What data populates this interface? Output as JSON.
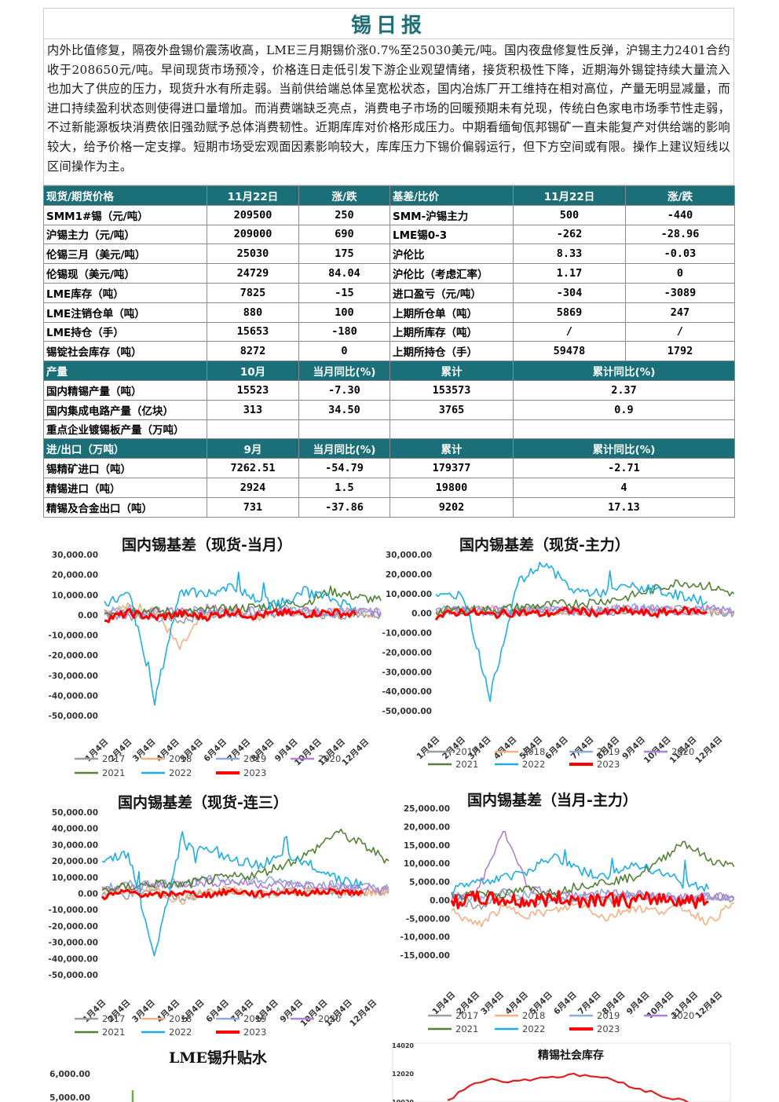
{
  "report_title": "锡日报",
  "summary": "内外比值修复，隔夜外盘锡价震荡收高，LME三月期锡价涨0.7%至25030美元/吨。国内夜盘修复性反弹，沪锡主力2401合约收于208650元/吨。早间现货市场预冷，价格连日走低引发下游企业观望情绪，接货积极性下降，近期海外锡锭持续大量流入也加大了供应的压力，现货升水有所走弱。当前供给端总体呈宽松状态，国内冶炼厂开工维持在相对高位，产量无明显减量，而进口持续盈利状态则使得进口量增加。而消费端缺乏亮点，消费电子市场的回暖预期未有兑现，传统白色家电市场季节性走弱，不过新能源板块消费依旧强劲赋予总体消费韧性。近期库库对价格形成压力。中期看缅甸佤邦锡矿一直未能复产对供给端的影响较大，给予价格一定支撑。短期市场受宏观面因素影响较大，库库压力下锡价偏弱运行，但下方空间或有限。操作上建议短线以区间操作为主。",
  "table": {
    "header1": [
      "现货/期货价格",
      "11月22日",
      "涨/跌",
      "基差/比价",
      "11月22日",
      "涨/跌"
    ],
    "rows1": [
      [
        "SMM1#锡（元/吨）",
        "209500",
        "250",
        "SMM-沪锡主力",
        "500",
        "-440"
      ],
      [
        "沪锡主力（元/吨）",
        "209000",
        "690",
        "LME锡0-3",
        "-262",
        "-28.96"
      ],
      [
        "伦锡三月（美元/吨）",
        "25030",
        "175",
        "沪伦比",
        "8.33",
        "-0.03"
      ],
      [
        "伦锡现（美元/吨）",
        "24729",
        "84.04",
        "沪伦比（考虑汇率）",
        "1.17",
        "0"
      ],
      [
        "LME库存（吨）",
        "7825",
        "-15",
        "进口盈亏（元/吨）",
        "-304",
        "-3089"
      ],
      [
        "LME注销仓单（吨）",
        "880",
        "100",
        "上期所仓单（吨）",
        "5869",
        "247"
      ],
      [
        "LME持仓（手）",
        "15653",
        "-180",
        "上期所库存（吨）",
        "/",
        "/"
      ],
      [
        "锡锭社会库存（吨）",
        "8272",
        "0",
        "上期所持仓（手）",
        "59478",
        "1792"
      ]
    ],
    "header2": [
      "产量",
      "10月",
      "当月同比(%)",
      "累计",
      "累计同比(%)"
    ],
    "rows2": [
      [
        "国内精锡产量（吨）",
        "15523",
        "-7.30",
        "153573",
        "2.37"
      ],
      [
        "国内集成电路产量（亿块）",
        "313",
        "34.50",
        "3765",
        "0.9"
      ],
      [
        "重点企业镀锡板产量（万吨）",
        "",
        "",
        "",
        ""
      ]
    ],
    "header3": [
      "进/出口（万吨）",
      "9月",
      "当月同比(%)",
      "累计",
      "累计同比(%)"
    ],
    "rows3": [
      [
        "锡精矿进口（吨）",
        "7262.51",
        "-54.79",
        "179377",
        "-2.71"
      ],
      [
        "精锡进口（吨）",
        "2924",
        "1.5",
        "19800",
        "4"
      ],
      [
        "精锡及合金出口（吨）",
        "731",
        "-37.86",
        "9202",
        "17.13"
      ]
    ]
  },
  "colors": {
    "header_bg": "#1b6f78",
    "s2017": "#9e9e9e",
    "s2018": "#f4b183",
    "s2019": "#8faadc",
    "s2020": "#b07fd8",
    "s2021": "#548235",
    "s2022": "#1eaee6",
    "s2023": "#ff0000"
  },
  "months": [
    "1月4日",
    "2月4日",
    "3月4日",
    "4月4日",
    "5月4日",
    "6月4日",
    "7月4日",
    "8月4日",
    "9月4日",
    "10月4日",
    "11月4日",
    "12月4日"
  ],
  "legend": [
    "2017",
    "2018",
    "2019",
    "2020",
    "2021",
    "2022",
    "2023"
  ],
  "chart_data": [
    {
      "type": "line",
      "title": "国内锡基差（现货-当月）",
      "ylim": [
        -50000,
        30000
      ],
      "yticks": [
        "30,000.00",
        "20,000.00",
        "10,000.00",
        "0.00",
        "-10,000.00",
        "-20,000.00",
        "-30,000.00",
        "-40,000.00",
        "-50,000.00"
      ],
      "x": [
        "1月4日",
        "2月4日",
        "3月4日",
        "4月4日",
        "5月4日",
        "6月4日",
        "7月4日",
        "8月4日",
        "9月4日",
        "10月4日",
        "11月4日",
        "12月4日"
      ],
      "legend_position": "bottom",
      "series": [
        {
          "name": "2017",
          "values": [
            500,
            -1000,
            1500,
            -3000,
            0,
            1000,
            -500,
            1500,
            2000,
            -500,
            1000,
            500
          ]
        },
        {
          "name": "2018",
          "values": [
            2000,
            4000,
            3000,
            -17000,
            1000,
            2000,
            -1000,
            1500,
            1000,
            2000,
            500,
            1000
          ]
        },
        {
          "name": "2019",
          "values": [
            1500,
            2500,
            -2000,
            1000,
            2500,
            1000,
            2000,
            3000,
            2500,
            1000,
            2000,
            1500
          ]
        },
        {
          "name": "2020",
          "values": [
            1000,
            500,
            1500,
            2000,
            3000,
            2500,
            1500,
            2000,
            1500,
            1000,
            2000,
            1000
          ]
        },
        {
          "name": "2021",
          "values": [
            1000,
            3000,
            2000,
            1000,
            2000,
            3000,
            4000,
            5000,
            6000,
            12000,
            9000,
            7000
          ]
        },
        {
          "name": "2022",
          "values": [
            6000,
            10000,
            -43000,
            12000,
            10000,
            15000,
            8000,
            6000,
            12000,
            8000,
            4000,
            null
          ]
        },
        {
          "name": "2023",
          "values": [
            -2000,
            1000,
            -1500,
            500,
            -1000,
            1500,
            -500,
            1000,
            500,
            1500,
            0,
            null
          ]
        }
      ]
    },
    {
      "type": "line",
      "title": "国内锡基差（现货-主力）",
      "ylim": [
        -50000,
        30000
      ],
      "yticks": [
        "30,000.00",
        "20,000.00",
        "10,000.00",
        "0.00",
        "-10,000.00",
        "-20,000.00",
        "-30,000.00",
        "-40,000.00",
        "-50,000.00"
      ],
      "x": [
        "1月4日",
        "2月4日",
        "3月4日",
        "4月4日",
        "5月4日",
        "6月4日",
        "7月4日",
        "8月4日",
        "9月4日",
        "10月4日",
        "11月4日",
        "12月4日"
      ],
      "legend_position": "bottom",
      "series": [
        {
          "name": "2017",
          "values": [
            1000,
            2000,
            1500,
            1000,
            500,
            2000,
            1500,
            1000,
            2000,
            1500,
            1000,
            500
          ]
        },
        {
          "name": "2018",
          "values": [
            500,
            1500,
            2000,
            1000,
            1500,
            500,
            1000,
            2000,
            1500,
            1000,
            500,
            1000
          ]
        },
        {
          "name": "2019",
          "values": [
            1500,
            1000,
            500,
            2000,
            2500,
            1000,
            1500,
            3000,
            2000,
            1000,
            1500,
            1000
          ]
        },
        {
          "name": "2020",
          "values": [
            1000,
            2000,
            1500,
            1000,
            2000,
            1500,
            1000,
            2000,
            1500,
            1000,
            2000,
            1000
          ]
        },
        {
          "name": "2021",
          "values": [
            1000,
            2000,
            1500,
            3000,
            4000,
            5000,
            6000,
            8000,
            12000,
            16000,
            14000,
            10000
          ]
        },
        {
          "name": "2022",
          "values": [
            8000,
            10000,
            -43000,
            15000,
            26000,
            12000,
            10000,
            14000,
            12000,
            9000,
            6000,
            null
          ]
        },
        {
          "name": "2023",
          "values": [
            -2000,
            1000,
            -1000,
            500,
            -500,
            1500,
            0,
            1000,
            -500,
            1500,
            500,
            null
          ]
        }
      ]
    },
    {
      "type": "line",
      "title": "国内锡基差（现货-连三）",
      "ylim": [
        -50000,
        50000
      ],
      "yticks": [
        "50,000.00",
        "40,000.00",
        "30,000.00",
        "20,000.00",
        "10,000.00",
        "0.00",
        "-10,000.00",
        "-20,000.00",
        "-30,000.00",
        "-40,000.00",
        "-50,000.00"
      ],
      "x": [
        "1月4日",
        "2月4日",
        "3月4日",
        "4月4日",
        "5月4日",
        "6月4日",
        "7月4日",
        "8月4日",
        "9月4日",
        "10月4日",
        "11月4日",
        "12月4日"
      ],
      "legend_position": "bottom",
      "series": [
        {
          "name": "2017",
          "values": [
            500,
            -1000,
            1500,
            -3000,
            0,
            1000,
            -500,
            1500,
            2000,
            -500,
            1000,
            500
          ]
        },
        {
          "name": "2018",
          "values": [
            2000,
            1000,
            3000,
            -5000,
            1000,
            2000,
            -1000,
            1500,
            1000,
            2000,
            500,
            1000
          ]
        },
        {
          "name": "2019",
          "values": [
            3000,
            5000,
            6000,
            7000,
            8000,
            9000,
            8000,
            7000,
            6000,
            5000,
            4000,
            3000
          ]
        },
        {
          "name": "2020",
          "values": [
            2000,
            4000,
            5000,
            6000,
            7000,
            7000,
            6000,
            5000,
            5000,
            4000,
            3000,
            2000
          ]
        },
        {
          "name": "2021",
          "values": [
            2000,
            4000,
            6000,
            5000,
            8000,
            10000,
            12000,
            18000,
            25000,
            38000,
            30000,
            20000
          ]
        },
        {
          "name": "2022",
          "values": [
            20000,
            25000,
            -38000,
            30000,
            28000,
            20000,
            18000,
            22000,
            18000,
            10000,
            5000,
            null
          ]
        },
        {
          "name": "2023",
          "values": [
            -2000,
            1000,
            -1500,
            500,
            -1000,
            1500,
            -500,
            1000,
            500,
            1500,
            0,
            null
          ]
        }
      ]
    },
    {
      "type": "line",
      "title": "国内锡基差（当月-主力）",
      "ylim": [
        -15000,
        25000
      ],
      "yticks": [
        "25,000.00",
        "20,000.00",
        "15,000.00",
        "10,000.00",
        "5,000.00",
        "0.00",
        "-5,000.00",
        "-10,000.00",
        "-15,000.00"
      ],
      "x": [
        "1月4日",
        "2月4日",
        "3月4日",
        "4月4日",
        "5月4日",
        "6月4日",
        "7月4日",
        "8月4日",
        "9月4日",
        "10月4日",
        "11月4日",
        "12月4日"
      ],
      "legend_position": "bottom",
      "series": [
        {
          "name": "2017",
          "values": [
            1000,
            -2000,
            1500,
            -1000,
            500,
            1000,
            -500,
            1500,
            1000,
            -500,
            1000,
            500
          ]
        },
        {
          "name": "2018",
          "values": [
            -3000,
            -7000,
            -2000,
            -4000,
            -3000,
            -1000,
            -5000,
            -2000,
            -3000,
            -2000,
            -6000,
            -1000
          ]
        },
        {
          "name": "2019",
          "values": [
            1000,
            500,
            2000,
            1500,
            -1000,
            1000,
            2000,
            1500,
            1000,
            500,
            1000,
            0
          ]
        },
        {
          "name": "2020",
          "values": [
            500,
            2000,
            19000,
            3000,
            2000,
            1000,
            1500,
            2000,
            1000,
            500,
            1000,
            500
          ]
        },
        {
          "name": "2021",
          "values": [
            1000,
            2000,
            1500,
            3000,
            2000,
            4000,
            5000,
            6000,
            10000,
            16000,
            11000,
            9000
          ]
        },
        {
          "name": "2022",
          "values": [
            3000,
            5000,
            6000,
            8000,
            12000,
            8000,
            6000,
            10000,
            8000,
            5000,
            3000,
            null
          ]
        },
        {
          "name": "2023",
          "values": [
            -500,
            500,
            0,
            -500,
            500,
            0,
            500,
            -500,
            500,
            0,
            -500,
            null
          ]
        }
      ]
    },
    {
      "type": "line",
      "title": "LME锡升贴水",
      "yticks": [
        "6,000.00",
        "5,000.00"
      ],
      "series": [
        {
          "name": "",
          "values": []
        }
      ]
    },
    {
      "type": "line",
      "title": "精锡社会库存",
      "yticks": [
        "14020",
        "12020",
        "10020"
      ],
      "series": [
        {
          "name": "",
          "values": [
            10300,
            11400,
            11800,
            11600,
            11900,
            12000,
            12100,
            11950,
            11500,
            11000,
            10500,
            10200
          ]
        }
      ]
    }
  ]
}
